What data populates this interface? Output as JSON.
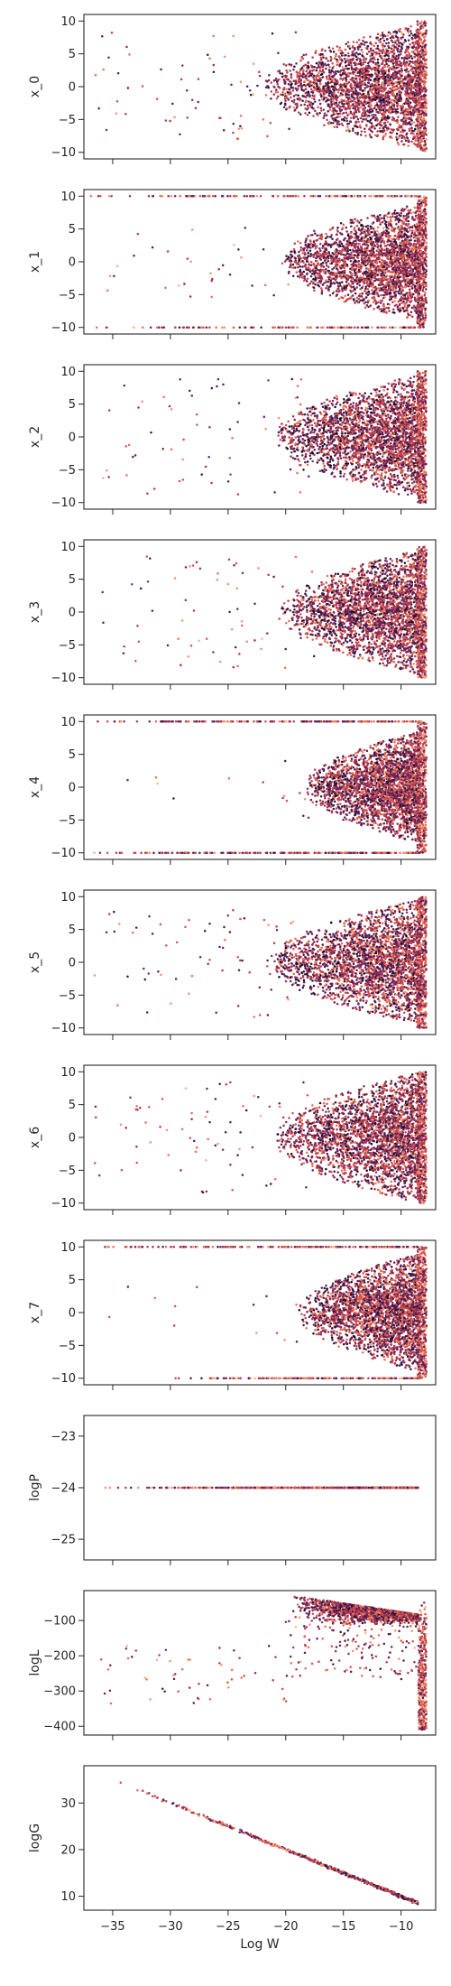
{
  "chart_data": {
    "type": "scatter",
    "figure_kind": "stacked scatter panels with a shared x axis",
    "colormap": [
      "#0c0a1f",
      "#2c1742",
      "#4d1e55",
      "#6e2059",
      "#932c56",
      "#b73a4f",
      "#d4504a",
      "#e96d4f",
      "#f3906a",
      "#f6b38f"
    ],
    "point_color_ramp": "dark purple to salmon (rocket-style)",
    "grid": false,
    "xlabel": "Log W",
    "xlim": [
      -37.5,
      -7
    ],
    "xticks": [
      -35,
      -30,
      -25,
      -20,
      -15,
      -10
    ],
    "xtick_labels": [
      "−35",
      "−30",
      "−25",
      "−20",
      "−15",
      "−10"
    ],
    "panels": [
      {
        "ylabel": "x_0",
        "ylim": [
          -11,
          11
        ],
        "yticks": [
          -10,
          -5,
          0,
          5,
          10
        ],
        "pattern": "cloud",
        "cloud_start": -22,
        "cloud_spread": 9.5,
        "sparse_count": 70,
        "sparse_start": -37,
        "sparse_frac": 0.85,
        "clip": false
      },
      {
        "ylabel": "x_1",
        "ylim": [
          -11,
          11
        ],
        "yticks": [
          -10,
          -5,
          0,
          5,
          10
        ],
        "pattern": "cloud_edges",
        "cloud_start": -20.5,
        "cloud_spread": 9,
        "sparse_count": 35,
        "sparse_start": -37,
        "sparse_frac": 0.55,
        "edge_start": -37,
        "edge_count": 150,
        "clip": true
      },
      {
        "ylabel": "x_2",
        "ylim": [
          -11,
          11
        ],
        "yticks": [
          -10,
          -5,
          0,
          5,
          10
        ],
        "pattern": "cloud",
        "cloud_start": -21,
        "cloud_spread": 9.5,
        "sparse_count": 70,
        "sparse_start": -37,
        "sparse_frac": 0.9,
        "clip": false
      },
      {
        "ylabel": "x_3",
        "ylim": [
          -11,
          11
        ],
        "yticks": [
          -10,
          -5,
          0,
          5,
          10
        ],
        "pattern": "cloud",
        "cloud_start": -20.5,
        "cloud_spread": 9.5,
        "sparse_count": 70,
        "sparse_start": -37,
        "sparse_frac": 0.9,
        "clip": false
      },
      {
        "ylabel": "x_4",
        "ylim": [
          -11,
          11
        ],
        "yticks": [
          -10,
          -5,
          0,
          5,
          10
        ],
        "pattern": "cloud_edges",
        "cloud_start": -18.5,
        "cloud_spread": 8.5,
        "sparse_count": 15,
        "sparse_start": -37,
        "sparse_frac": 0.5,
        "edge_start": -37,
        "edge_count": 220,
        "clip": true
      },
      {
        "ylabel": "x_5",
        "ylim": [
          -11,
          11
        ],
        "yticks": [
          -10,
          -5,
          0,
          5,
          10
        ],
        "pattern": "cloud",
        "cloud_start": -21.5,
        "cloud_spread": 9.5,
        "sparse_count": 70,
        "sparse_start": -37,
        "sparse_frac": 0.85,
        "clip": false
      },
      {
        "ylabel": "x_6",
        "ylim": [
          -11,
          11
        ],
        "yticks": [
          -10,
          -5,
          0,
          5,
          10
        ],
        "pattern": "cloud",
        "cloud_start": -21,
        "cloud_spread": 10,
        "sparse_count": 75,
        "sparse_start": -37,
        "sparse_frac": 0.9,
        "clip": false
      },
      {
        "ylabel": "x_7",
        "ylim": [
          -11,
          11
        ],
        "yticks": [
          -10,
          -5,
          0,
          5,
          10
        ],
        "pattern": "cloud_edges",
        "cloud_start": -19,
        "cloud_spread": 9,
        "sparse_count": 15,
        "sparse_start": -37,
        "sparse_frac": 0.5,
        "edge_start": -37,
        "edge_count": 200,
        "edge_bottom_start": -30,
        "clip": true
      },
      {
        "ylabel": "logP",
        "ylim": [
          -25.4,
          -22.6
        ],
        "yticks": [
          -25,
          -24,
          -23
        ],
        "pattern": "hline",
        "y": -24,
        "x_from": -36.5,
        "x_to": -8.5
      },
      {
        "ylabel": "logL",
        "ylim": [
          -425,
          -15
        ],
        "yticks": [
          -400,
          -300,
          -200,
          -100
        ],
        "pattern": "likelihood"
      },
      {
        "ylabel": "logG",
        "ylim": [
          7,
          38
        ],
        "yticks": [
          10,
          20,
          30
        ],
        "pattern": "diagonal",
        "x_from": -36.5,
        "x_to": -8.5,
        "y_from": 36.5,
        "y_to": 8.5
      }
    ]
  }
}
